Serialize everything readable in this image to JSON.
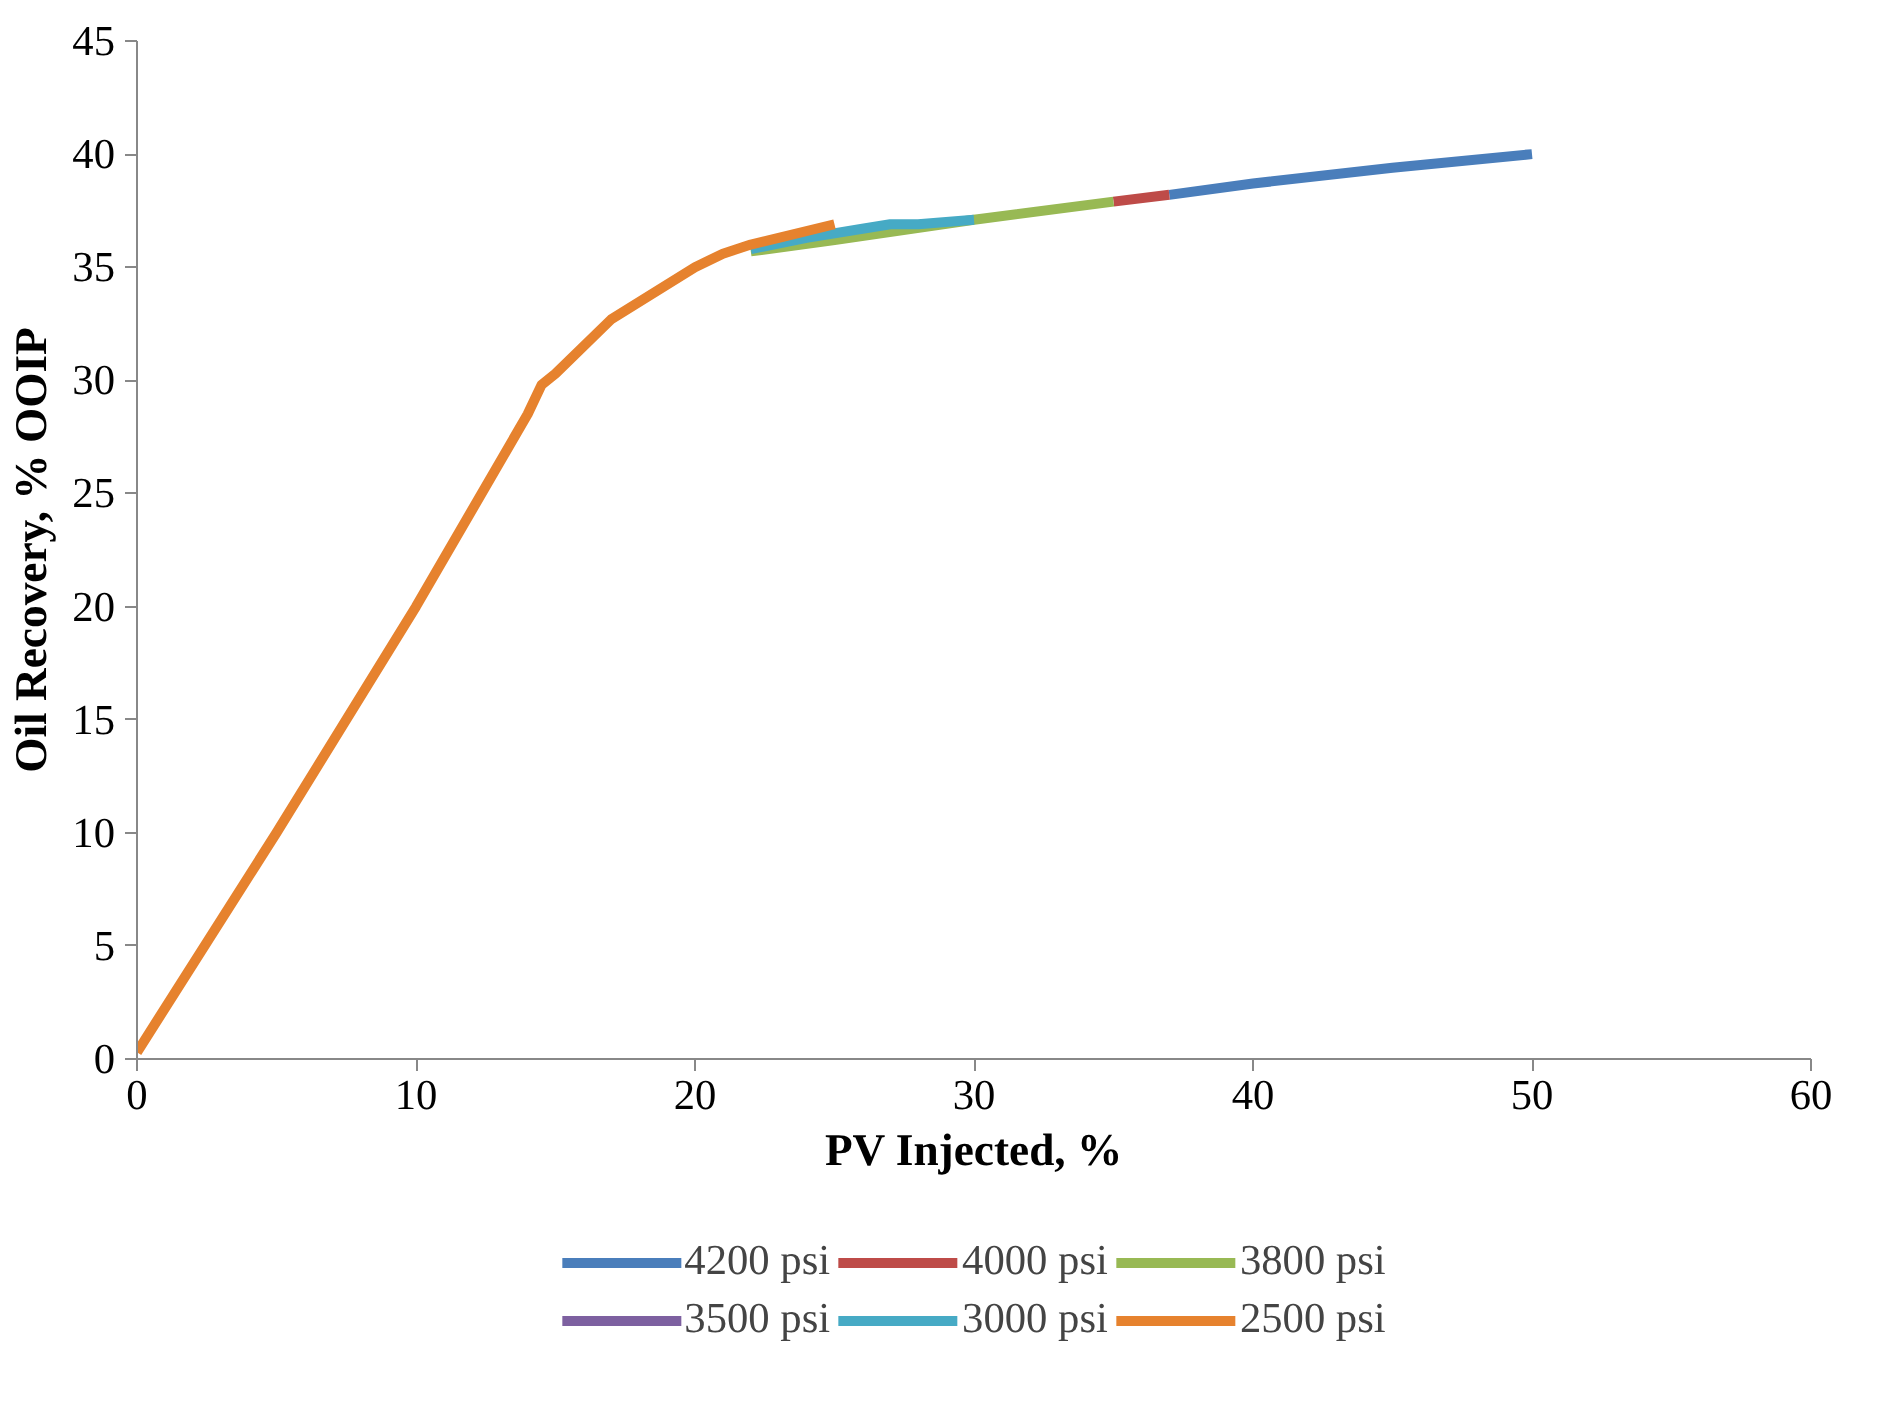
{
  "chart_data": {
    "type": "line",
    "xlabel": "PV Injected, %",
    "ylabel": "Oil Recovery, % OOIP",
    "xlim": [
      0,
      60
    ],
    "xticks": [
      0,
      10,
      20,
      30,
      40,
      50,
      60
    ],
    "ylim": [
      0,
      45
    ],
    "yticks": [
      0,
      5,
      10,
      15,
      20,
      25,
      30,
      35,
      40,
      45
    ],
    "grid": false,
    "legend": "bottom",
    "marker": "none",
    "line_style": "solid",
    "series": [
      {
        "name": "4200 psi",
        "color": "#4a7ebb",
        "x": [
          37,
          40,
          45,
          50
        ],
        "values": [
          38.2,
          38.7,
          39.4,
          40
        ]
      },
      {
        "name": "4000 psi",
        "color": "#be4b48",
        "x": [
          35,
          37
        ],
        "values": [
          37.9,
          38.2
        ]
      },
      {
        "name": "3800 psi",
        "color": "#98b954",
        "x": [
          22,
          25,
          30,
          35
        ],
        "values": [
          35.7,
          36.2,
          37.1,
          37.9
        ]
      },
      {
        "name": "3500 psi",
        "color": "#7d60a0"
      },
      {
        "name": "3000 psi",
        "color": "#46aac5",
        "x": [
          22,
          24,
          26,
          27,
          28,
          29,
          30
        ],
        "values": [
          35.8,
          36.3,
          36.7,
          36.9,
          36.9,
          37.0,
          37.1
        ]
      },
      {
        "name": "2500 psi",
        "color": "#e6822e",
        "x": [
          0,
          5,
          10,
          14,
          14.5,
          15,
          17,
          20,
          21,
          22,
          23,
          25
        ],
        "values": [
          0.3,
          10,
          20,
          28.5,
          29.8,
          30.3,
          32.7,
          35,
          35.6,
          36.0,
          36.3,
          36.9
        ]
      }
    ]
  }
}
